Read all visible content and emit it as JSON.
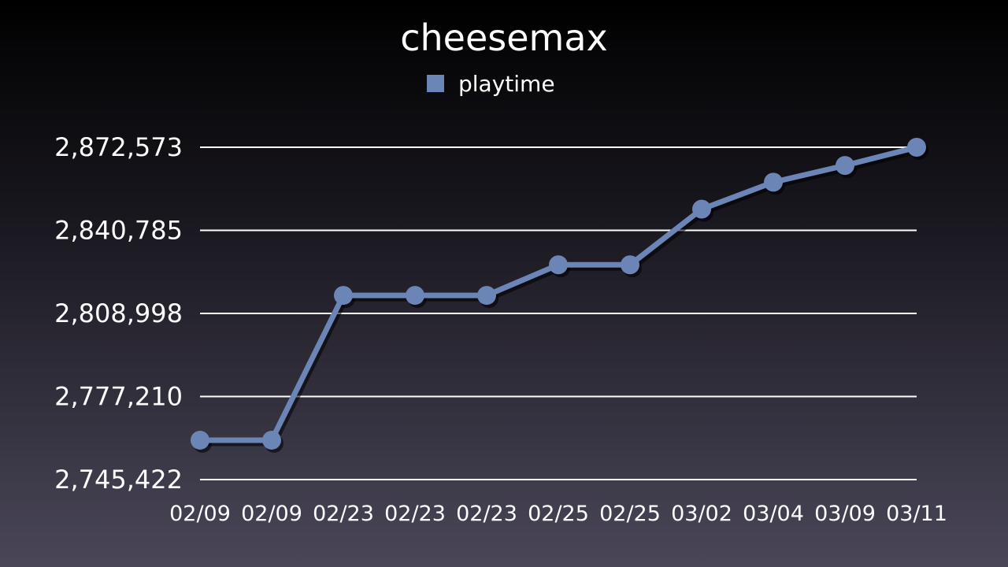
{
  "colors": {
    "series": "#6b86b6",
    "grid": "#ffffff",
    "text": "#ffffff"
  },
  "chart_data": {
    "type": "line",
    "title": "cheesemax",
    "xlabel": "",
    "ylabel": "",
    "legend_position": "top-center",
    "grid": true,
    "categories": [
      "02/09",
      "02/09",
      "02/23",
      "02/23",
      "02/23",
      "02/25",
      "02/25",
      "03/02",
      "03/04",
      "03/09",
      "03/11"
    ],
    "series": [
      {
        "name": "playtime",
        "values": [
          2760500,
          2760500,
          2815900,
          2815900,
          2815900,
          2827600,
          2827600,
          2848900,
          2859200,
          2865600,
          2872573
        ]
      }
    ],
    "yticks": [
      "2,745,422",
      "2,777,210",
      "2,808,998",
      "2,840,785",
      "2,872,573"
    ],
    "ytick_values": [
      2745422,
      2777210,
      2808998,
      2840785,
      2872573
    ],
    "ylim": [
      2745422,
      2872573
    ]
  }
}
